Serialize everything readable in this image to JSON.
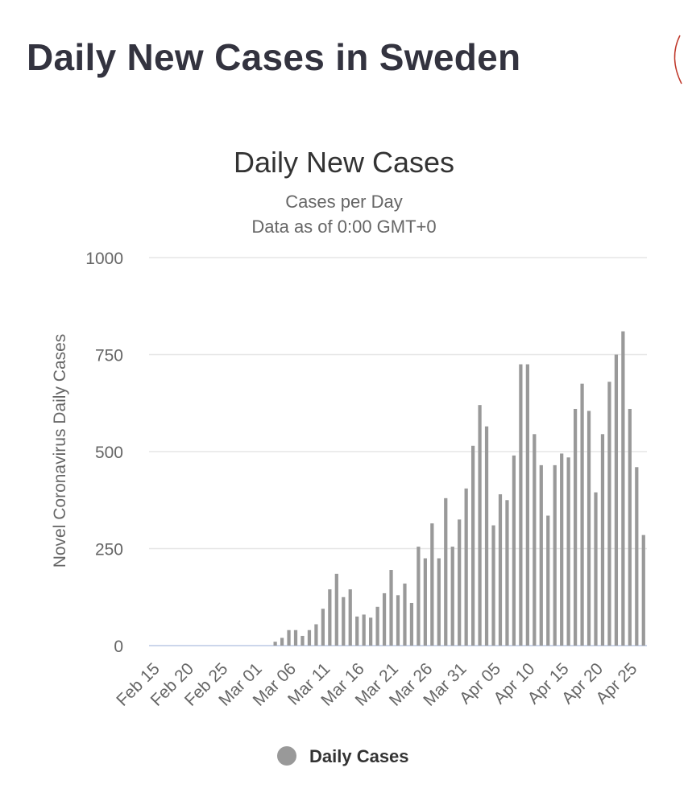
{
  "page": {
    "title": "Daily New Cases in Sweden"
  },
  "chart_data": {
    "type": "bar",
    "title": "Daily New Cases",
    "subtitle": "Cases per Day",
    "subtitle2": "Data as of 0:00 GMT+0",
    "xlabel": "",
    "ylabel": "Novel Coronavirus Daily Cases",
    "ylim": [
      0,
      1000
    ],
    "yticks": [
      0,
      250,
      500,
      750,
      1000
    ],
    "grid": true,
    "colors": {
      "bar": "#999999",
      "grid": "#e6e6e6",
      "baseline": "#ccd6eb"
    },
    "legend": {
      "position": "bottom-center",
      "label": "Daily Cases"
    },
    "xtick_labels": [
      "Feb 15",
      "Feb 20",
      "Feb 25",
      "Mar 01",
      "Mar 06",
      "Mar 11",
      "Mar 16",
      "Mar 21",
      "Mar 26",
      "Mar 31",
      "Apr 05",
      "Apr 10",
      "Apr 15",
      "Apr 20",
      "Apr 25"
    ],
    "first_category": "Feb 15",
    "tick_every": 5,
    "series": [
      {
        "name": "Daily Cases",
        "values": [
          0,
          0,
          0,
          0,
          0,
          0,
          0,
          0,
          0,
          0,
          0,
          0,
          0,
          0,
          0,
          0,
          0,
          0,
          10,
          20,
          40,
          40,
          25,
          40,
          55,
          95,
          145,
          185,
          125,
          145,
          75,
          80,
          72,
          100,
          135,
          195,
          130,
          160,
          110,
          255,
          225,
          315,
          225,
          380,
          255,
          325,
          405,
          515,
          620,
          565,
          310,
          390,
          375,
          490,
          725,
          725,
          545,
          465,
          335,
          465,
          495,
          485,
          610,
          675,
          605,
          395,
          545,
          680,
          750,
          810,
          610,
          460,
          285
        ]
      }
    ]
  }
}
